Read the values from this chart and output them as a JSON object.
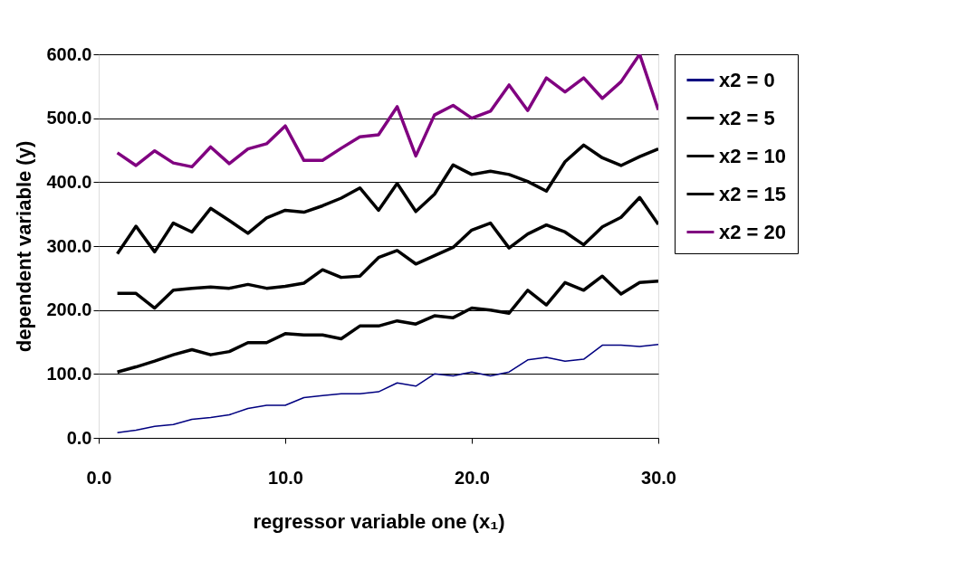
{
  "chart_data": {
    "type": "line",
    "xlabel": "regressor variable one (x₁)",
    "ylabel": "dependent variable (y)",
    "x": [
      1,
      2,
      3,
      4,
      5,
      6,
      7,
      8,
      9,
      10,
      11,
      12,
      13,
      14,
      15,
      16,
      17,
      18,
      19,
      20,
      21,
      22,
      23,
      24,
      25,
      26,
      27,
      28,
      29,
      30
    ],
    "series": [
      {
        "name": "x2 = 0",
        "color": "#000080",
        "values": [
          8,
          12,
          18,
          21,
          29,
          32,
          36,
          46,
          51,
          51,
          63,
          66,
          69,
          69,
          72,
          86,
          81,
          100,
          97,
          103,
          97,
          103,
          122,
          126,
          120,
          123,
          145,
          145,
          143,
          146
        ]
      },
      {
        "name": "x2 = 5",
        "color": "#000000",
        "values": [
          103,
          111,
          120,
          130,
          138,
          130,
          135,
          149,
          149,
          163,
          161,
          161,
          155,
          175,
          175,
          183,
          178,
          191,
          188,
          203,
          200,
          195,
          231,
          208,
          243,
          231,
          253,
          225,
          243,
          245
        ]
      },
      {
        "name": "x2 = 10",
        "color": "#000000",
        "values": [
          226,
          226,
          203,
          231,
          234,
          236,
          234,
          240,
          234,
          237,
          242,
          263,
          251,
          253,
          282,
          293,
          272,
          285,
          298,
          325,
          336,
          297,
          319,
          333,
          322,
          302,
          330,
          345,
          376,
          334
        ]
      },
      {
        "name": "x2 = 15",
        "color": "#000000",
        "values": [
          288,
          331,
          291,
          336,
          322,
          359,
          340,
          320,
          344,
          356,
          353,
          363,
          375,
          391,
          356,
          398,
          354,
          381,
          427,
          412,
          417,
          412,
          401,
          386,
          432,
          458,
          438,
          426,
          440,
          452
        ]
      },
      {
        "name": "x2 = 20",
        "color": "#800080",
        "values": [
          446,
          426,
          449,
          430,
          424,
          455,
          429,
          452,
          460,
          488,
          434,
          434,
          453,
          471,
          474,
          518,
          441,
          505,
          520,
          500,
          511,
          552,
          512,
          563,
          541,
          563,
          531,
          557,
          600,
          513
        ]
      }
    ],
    "xlim": [
      0,
      30
    ],
    "xticks": [
      {
        "value": 0,
        "label": "0.0"
      },
      {
        "value": 10,
        "label": "10.0"
      },
      {
        "value": 20,
        "label": "20.0"
      },
      {
        "value": 30,
        "label": "30.0"
      }
    ],
    "ylim": [
      0,
      600
    ],
    "yticks": [
      {
        "value": 0,
        "label": "0.0"
      },
      {
        "value": 100,
        "label": "100.0"
      },
      {
        "value": 200,
        "label": "200.0"
      },
      {
        "value": 300,
        "label": "300.0"
      },
      {
        "value": 400,
        "label": "400.0"
      },
      {
        "value": 500,
        "label": "500.0"
      },
      {
        "value": 600,
        "label": "600.0"
      }
    ],
    "grid": "y",
    "legend": "right",
    "marker": "none",
    "line_style": "solid"
  }
}
